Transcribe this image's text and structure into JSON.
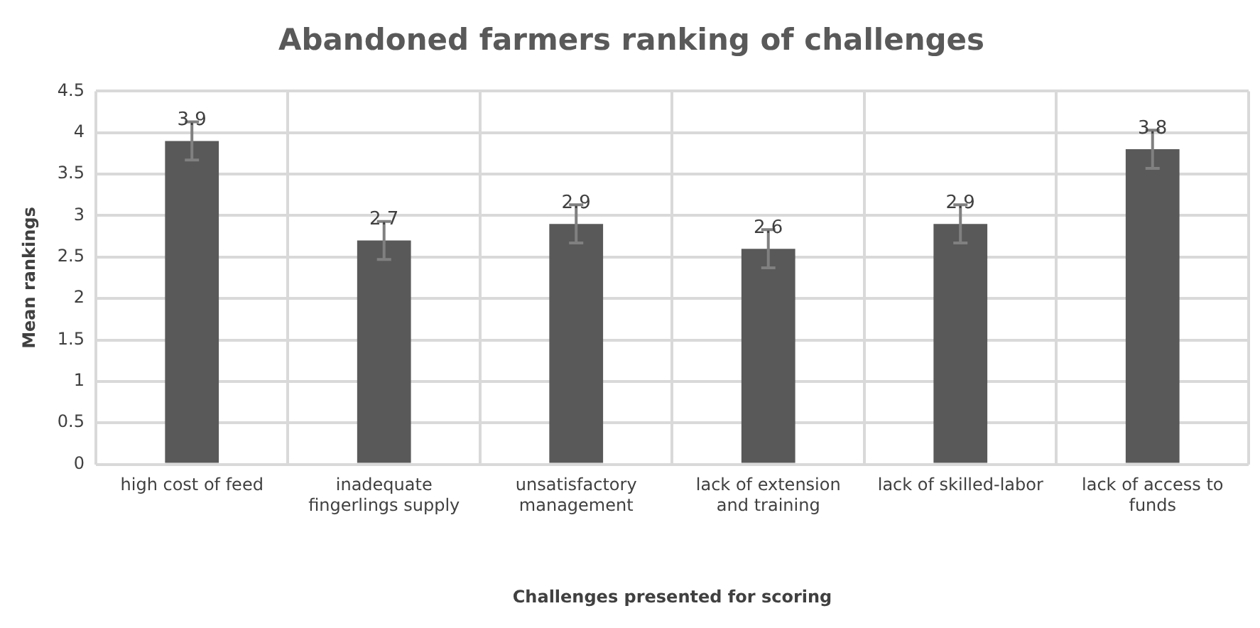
{
  "chart_data": {
    "type": "bar",
    "title": "Abandoned farmers ranking of challenges",
    "xlabel": "Challenges presented for scoring",
    "ylabel": "Mean rankings",
    "categories": [
      "high cost of feed",
      "inadequate fingerlings supply",
      "unsatisfactory management",
      "lack of extension and training",
      "lack of skilled-labor",
      "lack of access to funds"
    ],
    "values": [
      3.9,
      2.7,
      2.9,
      2.6,
      2.9,
      3.8
    ],
    "errors": [
      0.23,
      0.23,
      0.23,
      0.23,
      0.23,
      0.23
    ],
    "color": "#595959",
    "data_labels": true,
    "grid": true,
    "legend": false,
    "ylim": [
      0,
      4.5
    ],
    "yticks": [
      0,
      0.5,
      1,
      1.5,
      2,
      2.5,
      3,
      3.5,
      4,
      4.5
    ]
  }
}
